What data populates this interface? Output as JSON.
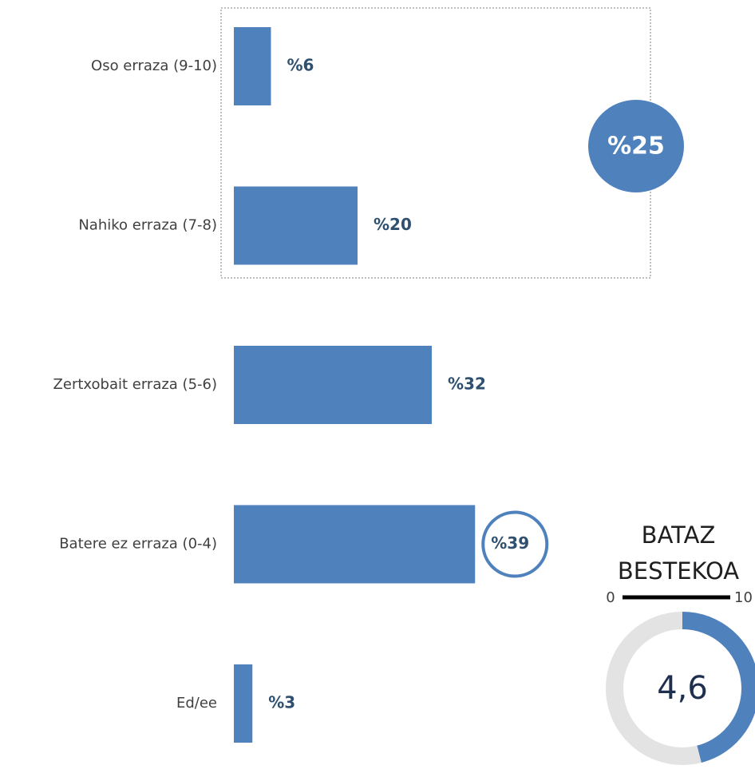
{
  "chart_data": {
    "type": "barh",
    "categories": [
      "Oso erraza (9-10)",
      "Nahiko erraza (7-8)",
      "Zertxobait erraza (5-6)",
      "Batere ez erraza (0-4)",
      "Ed/ee"
    ],
    "values": [
      6,
      20,
      32,
      39,
      3
    ],
    "value_labels": [
      "%6",
      "%20",
      "%32",
      "%39",
      "%3"
    ],
    "color": "#4f81bd",
    "highlight_index": 3,
    "summary_label": "%25",
    "mean": {
      "title": [
        "BATAZ",
        "BESTEKOA"
      ],
      "value": 4.6,
      "label": "4,6",
      "scale": [
        0,
        10
      ]
    }
  }
}
